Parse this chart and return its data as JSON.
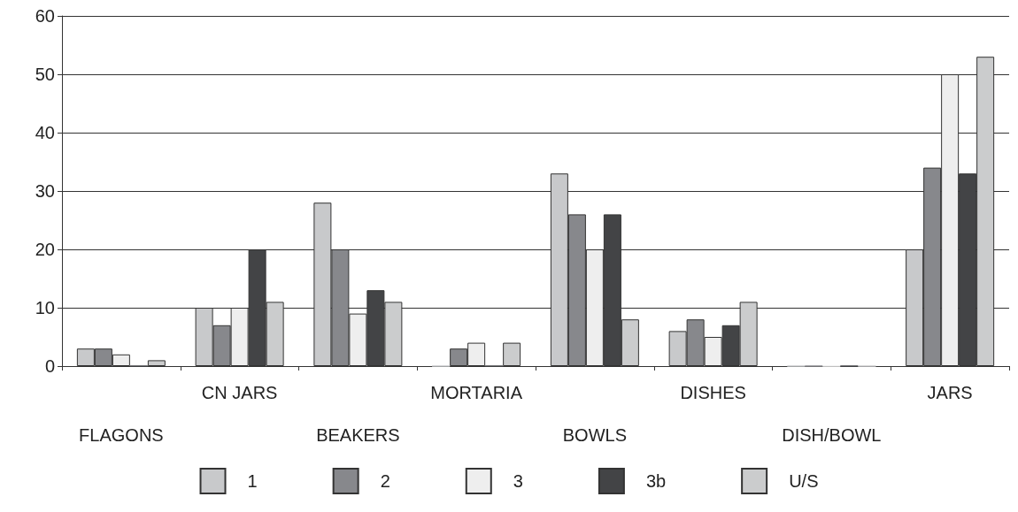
{
  "chart_data": {
    "type": "bar",
    "categories": [
      "FLAGONS",
      "CN JARS",
      "BEAKERS",
      "MORTARIA",
      "BOWLS",
      "DISHES",
      "DISH/BOWL",
      "JARS"
    ],
    "series": [
      {
        "name": "1",
        "color": "#c8c9cb",
        "values": [
          3,
          10,
          28,
          0,
          33,
          6,
          0,
          20
        ]
      },
      {
        "name": "2",
        "color": "#87888c",
        "values": [
          3,
          7,
          20,
          3,
          26,
          8,
          0,
          34
        ]
      },
      {
        "name": "3",
        "color": "#eeeeee",
        "values": [
          2,
          10,
          9,
          4,
          20,
          5,
          0,
          50
        ]
      },
      {
        "name": "3b",
        "color": "#434446",
        "values": [
          0,
          20,
          13,
          0,
          26,
          7,
          0,
          33
        ]
      },
      {
        "name": "U/S",
        "color": "#cbcccd",
        "values": [
          1,
          11,
          11,
          4,
          8,
          11,
          0,
          53
        ]
      }
    ],
    "ylim": [
      0,
      60
    ],
    "yticks": [
      0,
      10,
      20,
      30,
      40,
      50,
      60
    ],
    "grid": "y",
    "legend": "bottom"
  }
}
